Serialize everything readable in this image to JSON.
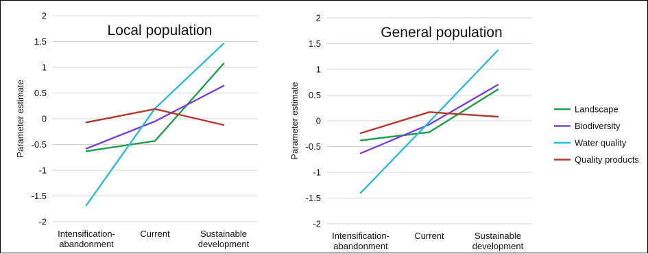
{
  "chart_data": [
    {
      "type": "line",
      "title": "Local population",
      "ylabel": "Parameter estimate",
      "xlabel": "",
      "categories": [
        [
          "Intensification-",
          "abandonment"
        ],
        [
          "Current"
        ],
        [
          "Sustainable",
          "development"
        ]
      ],
      "ylim": [
        -2,
        2
      ],
      "yticks": [
        -2,
        -1.5,
        -1,
        -0.5,
        0,
        0.5,
        1,
        1.5,
        2
      ],
      "grid": true,
      "series": [
        {
          "name": "Landscape",
          "color": "#1f9e4d",
          "values": [
            -0.63,
            -0.43,
            1.07
          ]
        },
        {
          "name": "Biodiversity",
          "color": "#7b3fd6",
          "values": [
            -0.58,
            -0.05,
            0.64
          ]
        },
        {
          "name": "Water quality",
          "color": "#2bbcd8",
          "values": [
            -1.68,
            0.2,
            1.46
          ]
        },
        {
          "name": "Quality products",
          "color": "#b03a2e",
          "values": [
            -0.07,
            0.19,
            -0.12
          ]
        }
      ]
    },
    {
      "type": "line",
      "title": "General population",
      "ylabel": "Parameter estimate",
      "xlabel": "",
      "categories": [
        [
          "Intensification-",
          "abandonment"
        ],
        [
          "Current"
        ],
        [
          "Sustainable",
          "development"
        ]
      ],
      "ylim": [
        -2,
        2
      ],
      "yticks": [
        -2,
        -1.5,
        -1,
        -0.5,
        0,
        0.5,
        1,
        1.5,
        2
      ],
      "grid": true,
      "series": [
        {
          "name": "Landscape",
          "color": "#1f9e4d",
          "values": [
            -0.38,
            -0.22,
            0.61
          ]
        },
        {
          "name": "Biodiversity",
          "color": "#7b3fd6",
          "values": [
            -0.63,
            -0.07,
            0.7
          ]
        },
        {
          "name": "Water quality",
          "color": "#2bbcd8",
          "values": [
            -1.4,
            -0.02,
            1.37
          ]
        },
        {
          "name": "Quality products",
          "color": "#b03a2e",
          "values": [
            -0.24,
            0.17,
            0.08
          ]
        }
      ]
    }
  ],
  "legend": {
    "placement": "right",
    "items": [
      {
        "name": "Landscape",
        "color": "#1f9e4d"
      },
      {
        "name": "Biodiversity",
        "color": "#7b3fd6"
      },
      {
        "name": "Water quality",
        "color": "#2bbcd8"
      },
      {
        "name": "Quality products",
        "color": "#b03a2e"
      }
    ]
  }
}
